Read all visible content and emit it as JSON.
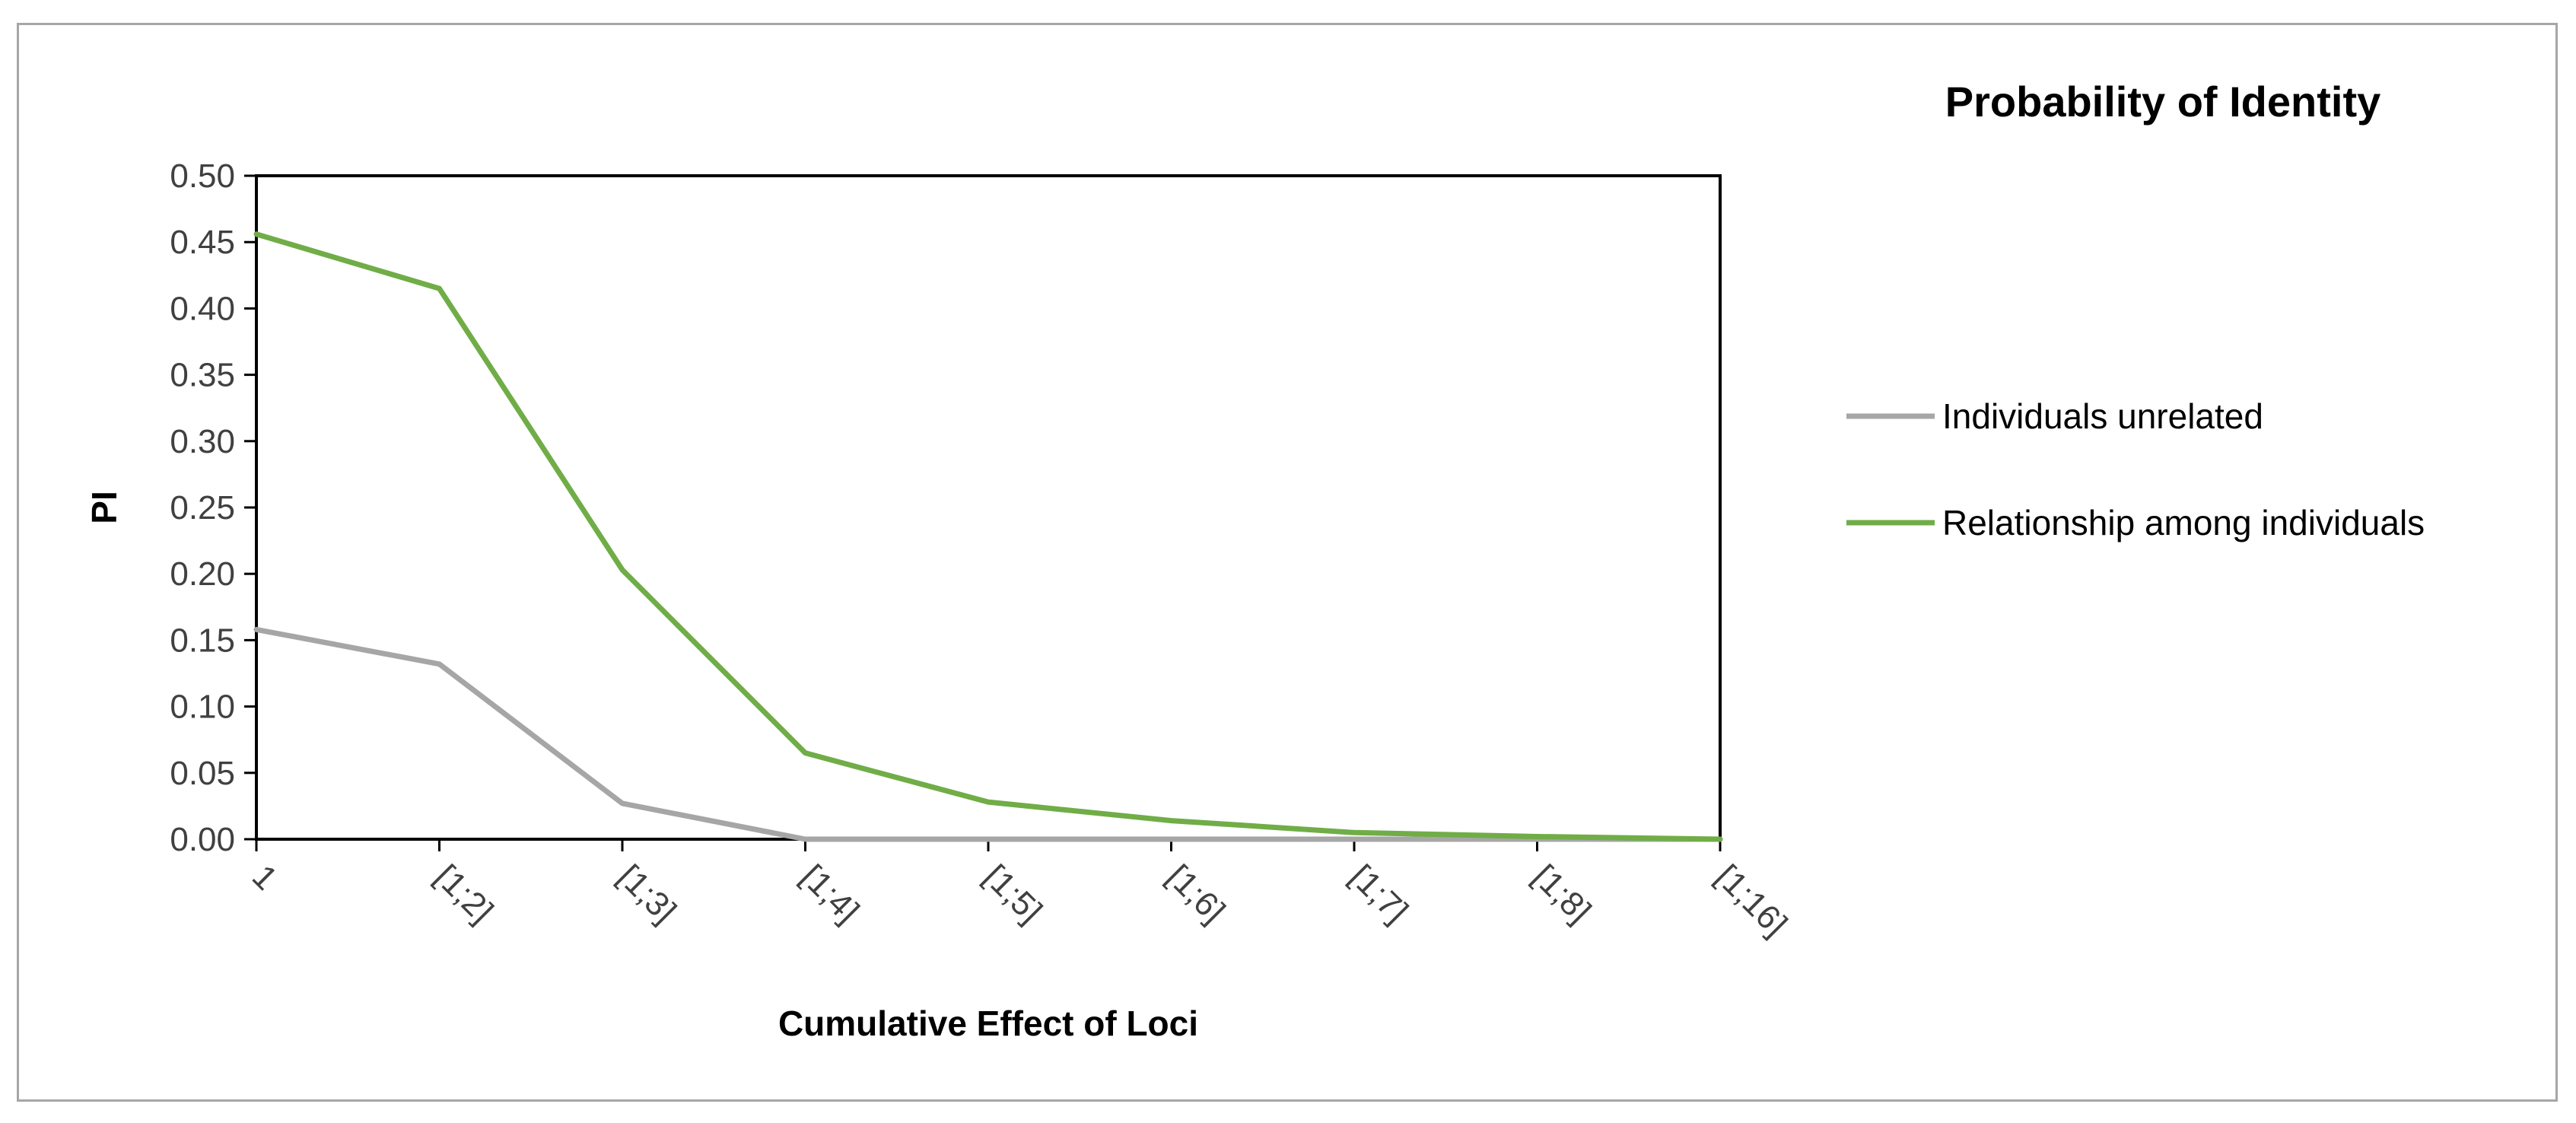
{
  "chart_data": {
    "type": "line",
    "title": "Probability of Identity",
    "xlabel": "Cumulative Effect of Loci",
    "ylabel": "PI",
    "categories": [
      "1",
      "[1;2]",
      "[1;3]",
      "[1;4]",
      "[1;5]",
      "[1;6]",
      "[1;7]",
      "[1;8]",
      "[1;16]"
    ],
    "ylim": [
      0,
      0.5
    ],
    "yticks": [
      "0.00",
      "0.05",
      "0.10",
      "0.15",
      "0.20",
      "0.25",
      "0.30",
      "0.35",
      "0.40",
      "0.45",
      "0.50"
    ],
    "grid": false,
    "legend_position": "right",
    "series": [
      {
        "name": "Individuals unrelated",
        "color": "#a6a6a6",
        "values": [
          0.158,
          0.132,
          0.027,
          0.0,
          0.0,
          0.0,
          0.0,
          0.0,
          0.0
        ]
      },
      {
        "name": "Relationship among individuals",
        "color": "#70ad47",
        "values": [
          0.456,
          0.415,
          0.203,
          0.065,
          0.028,
          0.014,
          0.005,
          0.002,
          0.0
        ]
      }
    ]
  }
}
